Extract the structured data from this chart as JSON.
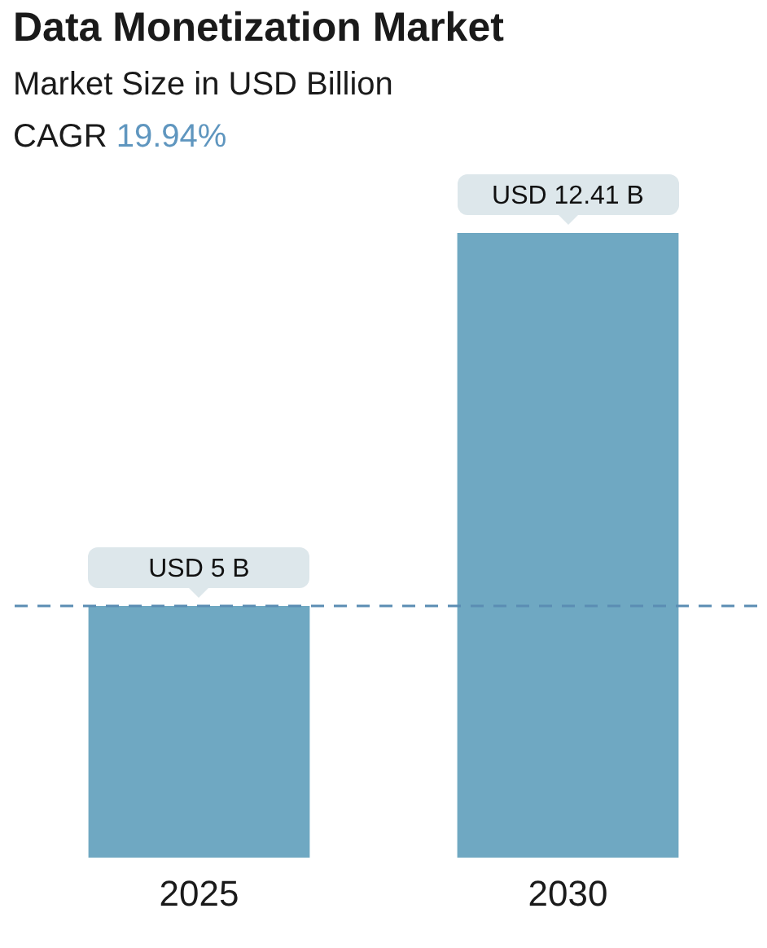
{
  "chart_data": {
    "type": "bar",
    "title": "Data Monetization Market",
    "subtitle": "Market Size in USD Billion",
    "annotations": [
      "CAGR 19.94%"
    ],
    "categories": [
      "2025",
      "2030"
    ],
    "values": [
      5,
      12.41
    ],
    "color": "#6fa8c2",
    "value_labels": [
      "USD 5 B",
      "USD 12.41 B"
    ],
    "ref_lines": [
      {
        "axis": "y",
        "value": 5,
        "color": "#5b8db3",
        "line_style": "dashed"
      }
    ],
    "tick_labels": "x"
  }
}
